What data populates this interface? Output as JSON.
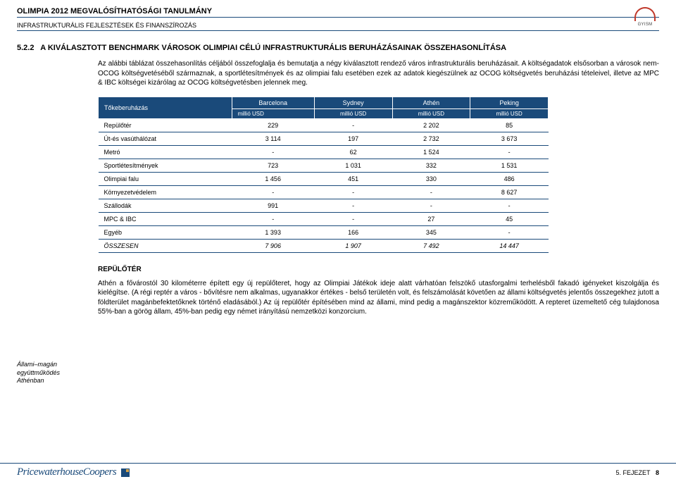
{
  "header": {
    "title": "OLIMPIA 2012 MEGVALÓSÍTHATÓSÁGI TANULMÁNY",
    "subtitle": "INFRASTRUKTURÁLIS FEJLESZTÉSEK ÉS FINANSZÍROZÁS",
    "logo_text": "GYISM"
  },
  "section": {
    "number": "5.2.2",
    "heading": "A KIVÁLASZTOTT BENCHMARK VÁROSOK OLIMPIAI CÉLÚ INFRASTRUKTURÁLIS BERUHÁZÁSAINAK ÖSSZEHASONLÍTÁSA"
  },
  "para1": "Az alábbi táblázat összehasonlítás céljából összefoglalja és bemutatja a négy kiválasztott rendező város infrastrukturális beruházásait. A költségadatok elsősorban a városok nem-OCOG költségvetéséből származnak, a sportlétesítmények és az olimpiai falu esetében ezek az adatok kiegészülnek az OCOG költségvetés beruházási tételeivel, illetve az MPC & IBC költségei kizárólag az OCOG költségvetésben jelennek meg.",
  "table": {
    "col0_header": "Tőkeberuházás",
    "cities": [
      "Barcelona",
      "Sydney",
      "Athén",
      "Peking"
    ],
    "unit": "millió USD",
    "rows": [
      {
        "label": "Repülőtér",
        "vals": [
          "229",
          "-",
          "2 202",
          "85"
        ]
      },
      {
        "label": "Út-és vasúthálózat",
        "vals": [
          "3 114",
          "197",
          "2 732",
          "3 673"
        ]
      },
      {
        "label": "Metró",
        "vals": [
          "-",
          "62",
          "1 524",
          "-"
        ]
      },
      {
        "label": "Sportlétesítmények",
        "vals": [
          "723",
          "1 031",
          "332",
          "1 531"
        ]
      },
      {
        "label": "Olimpiai falu",
        "vals": [
          "1 456",
          "451",
          "330",
          "486"
        ]
      },
      {
        "label": "Környezetvédelem",
        "vals": [
          "-",
          "-",
          "-",
          "8 627"
        ]
      },
      {
        "label": "Szállodák",
        "vals": [
          "991",
          "-",
          "-",
          "-"
        ]
      },
      {
        "label": "MPC & IBC",
        "vals": [
          "-",
          "-",
          "27",
          "45"
        ]
      },
      {
        "label": "Egyéb",
        "vals": [
          "1 393",
          "166",
          "345",
          "-"
        ]
      }
    ],
    "total": {
      "label": "ÖSSZESEN",
      "vals": [
        "7 906",
        "1 907",
        "7 492",
        "14 447"
      ]
    },
    "header_bg": "#1a4a7a",
    "header_fg": "#ffffff",
    "border_color": "#1a4a7a"
  },
  "subsection": {
    "heading": "REPÜLŐTÉR",
    "margin_note": "Állami–magán együttműködés Athénban",
    "para": "Athén a fővárostól 30 kilométerre épített egy új repülőteret, hogy az Olimpiai Játékok ideje alatt várhatóan felszökő utasforgalmi terhelésből fakadó igényeket kiszolgálja és kielégítse. (A régi reptér a város - bővítésre nem alkalmas, ugyanakkor értékes - belső területén volt, és felszámolását követően az állami költségvetés jelentős összegekhez jutott a földterület magánbefektetőknek történő eladásából.) Az új repülőtér építésében mind az állami, mind pedig a magánszektor közreműködött. A repteret üzemeltető cég tulajdonosa 55%-ban a görög állam, 45%-ban pedig egy német irányítású nemzetközi konzorcium."
  },
  "footer": {
    "brand": "PricewaterhouseCoopers",
    "page_label": "5. FEJEZET",
    "page_num": "8"
  }
}
